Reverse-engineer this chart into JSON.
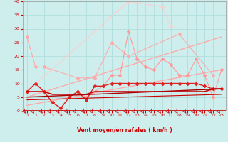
{
  "xlabel": "Vent moyen/en rafales ( km/h )",
  "xlim": [
    -0.5,
    23.5
  ],
  "ylim": [
    0,
    40
  ],
  "yticks": [
    0,
    5,
    10,
    15,
    20,
    25,
    30,
    35,
    40
  ],
  "xticks": [
    0,
    1,
    2,
    3,
    4,
    5,
    6,
    7,
    8,
    9,
    10,
    11,
    12,
    13,
    14,
    15,
    16,
    17,
    18,
    19,
    20,
    21,
    22,
    23
  ],
  "background_color": "#ceeeed",
  "grid_color": "#b0dede",
  "series": [
    {
      "x": [
        0,
        1,
        2,
        6,
        8,
        10,
        12,
        18,
        22
      ],
      "y": [
        27,
        16,
        16,
        12,
        12,
        25,
        20,
        28,
        13
      ],
      "color": "#ffaaaa",
      "lw": 0.8,
      "marker": "D",
      "ms": 2,
      "zorder": 3
    },
    {
      "x": [
        0,
        1,
        2,
        3,
        4,
        5,
        6,
        7,
        9,
        10,
        11,
        12,
        13,
        14,
        15,
        16,
        17,
        18,
        19,
        20,
        21,
        22,
        23
      ],
      "y": [
        7,
        10,
        7,
        3,
        1,
        5,
        7,
        5,
        9,
        13,
        13,
        29,
        19,
        16,
        15,
        19,
        17,
        13,
        13,
        19,
        13,
        5,
        15
      ],
      "color": "#ff9999",
      "lw": 0.8,
      "marker": "D",
      "ms": 2,
      "zorder": 3
    },
    {
      "x": [
        0,
        12,
        16,
        17
      ],
      "y": [
        7,
        40,
        38,
        31
      ],
      "color": "#ffcccc",
      "lw": 0.8,
      "marker": "D",
      "ms": 2,
      "zorder": 2
    },
    {
      "x": [
        0,
        23
      ],
      "y": [
        5,
        27
      ],
      "color": "#ffaaaa",
      "lw": 1.0,
      "marker": null,
      "ms": 0,
      "zorder": 2
    },
    {
      "x": [
        0,
        23
      ],
      "y": [
        2,
        15
      ],
      "color": "#ffaaaa",
      "lw": 1.0,
      "marker": null,
      "ms": 0,
      "zorder": 2
    },
    {
      "x": [
        0,
        1,
        2,
        3,
        4,
        5,
        6,
        7,
        8,
        9,
        10,
        11,
        12,
        13,
        14,
        15,
        16,
        17,
        18,
        19,
        20,
        21,
        22,
        23
      ],
      "y": [
        7,
        10,
        7,
        3,
        1,
        5,
        7,
        4,
        9,
        9,
        10,
        10,
        10,
        10,
        10,
        10,
        10,
        10,
        10,
        10,
        10,
        9,
        8,
        8
      ],
      "color": "#dd2222",
      "lw": 1.0,
      "marker": "D",
      "ms": 2,
      "zorder": 4
    },
    {
      "x": [
        0,
        1,
        2,
        3,
        4,
        5,
        6,
        7,
        8,
        9,
        10,
        11,
        12,
        13,
        14,
        15,
        16,
        17,
        18,
        19,
        20,
        21,
        22,
        23
      ],
      "y": [
        7,
        7,
        7,
        6,
        6,
        6,
        6,
        6,
        7,
        7,
        7,
        7,
        7,
        7,
        7,
        7,
        7,
        7,
        7,
        7,
        7,
        7,
        8,
        8
      ],
      "color": "#cc0000",
      "lw": 1.2,
      "marker": null,
      "ms": 0,
      "zorder": 4
    },
    {
      "x": [
        0,
        23
      ],
      "y": [
        5,
        8
      ],
      "color": "#aa0000",
      "lw": 1.0,
      "marker": null,
      "ms": 0,
      "zorder": 4
    },
    {
      "x": [
        0,
        23
      ],
      "y": [
        4,
        6
      ],
      "color": "#cc0000",
      "lw": 0.8,
      "marker": null,
      "ms": 0,
      "zorder": 4
    }
  ],
  "wind_arrows_x": [
    0,
    1,
    2,
    3,
    4,
    5,
    6,
    7,
    8,
    9,
    10,
    11,
    12,
    13,
    14,
    15,
    16,
    17,
    18,
    19,
    20,
    21,
    22,
    23
  ],
  "wind_arrow_color": "#cc0000"
}
